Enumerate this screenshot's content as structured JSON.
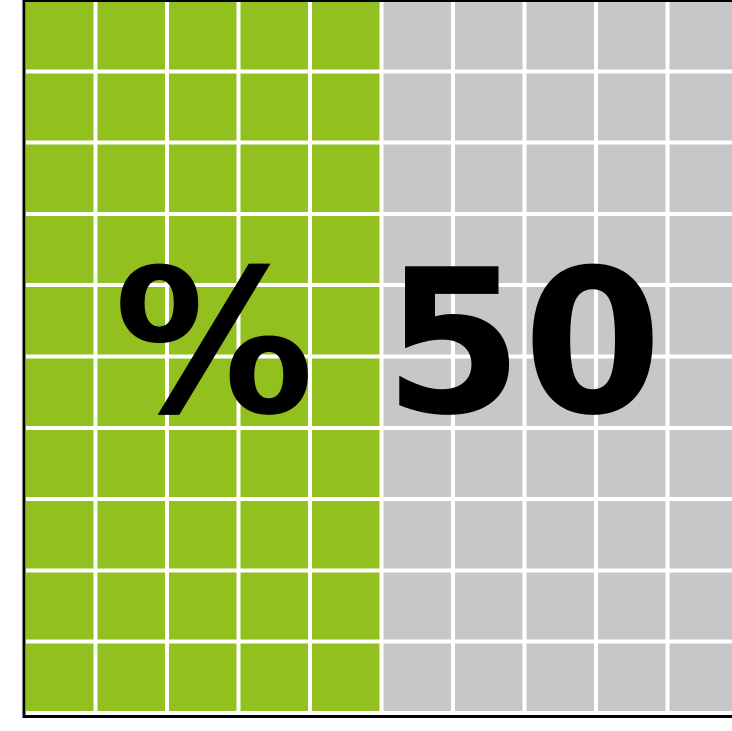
{
  "chart_data": {
    "type": "waffle",
    "value": 50,
    "unit": "%",
    "label": "% 50",
    "colors": {
      "filled": "#92c01f",
      "empty": "#c8c7c8",
      "grid_lines": "#ffffff",
      "border": "#000000",
      "text": "#000000"
    }
  }
}
